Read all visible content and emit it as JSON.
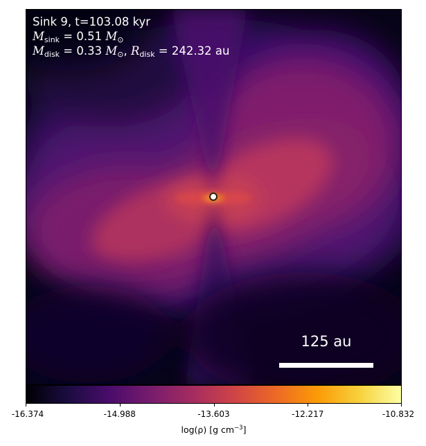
{
  "annotation": {
    "sink_line": "Sink 9, t=103.08 kyr",
    "m_sink_sym": "M",
    "m_sink_sub": "sink",
    "m_sink_value": " = 0.51 ",
    "m_sun_sym": "M",
    "m_sun_sub": "⊙",
    "m_disk_sym": "M",
    "m_disk_sub": "disk",
    "m_disk_value": " = 0.33 ",
    "r_disk_sym": "R",
    "r_disk_sub": "disk",
    "r_disk_value": " = 242.32 au",
    "separator": ", "
  },
  "scalebar": {
    "label": "125 au"
  },
  "colorbar": {
    "colormap": "inferno-like",
    "colors": [
      "#000004",
      "#1b0c41",
      "#4a0c6b",
      "#781c6d",
      "#a52c60",
      "#cf4446",
      "#ed6925",
      "#fb9b06",
      "#f7d13d",
      "#fcffa4"
    ],
    "ticks": [
      "-16.374",
      "-14.988",
      "-13.603",
      "-12.217",
      "-10.832"
    ],
    "tick_values": [
      -16.374,
      -14.988,
      -13.603,
      -12.217,
      -10.832
    ],
    "label_main": "log(ρ) [g cm",
    "label_exp": "−3",
    "label_close": "]"
  }
}
